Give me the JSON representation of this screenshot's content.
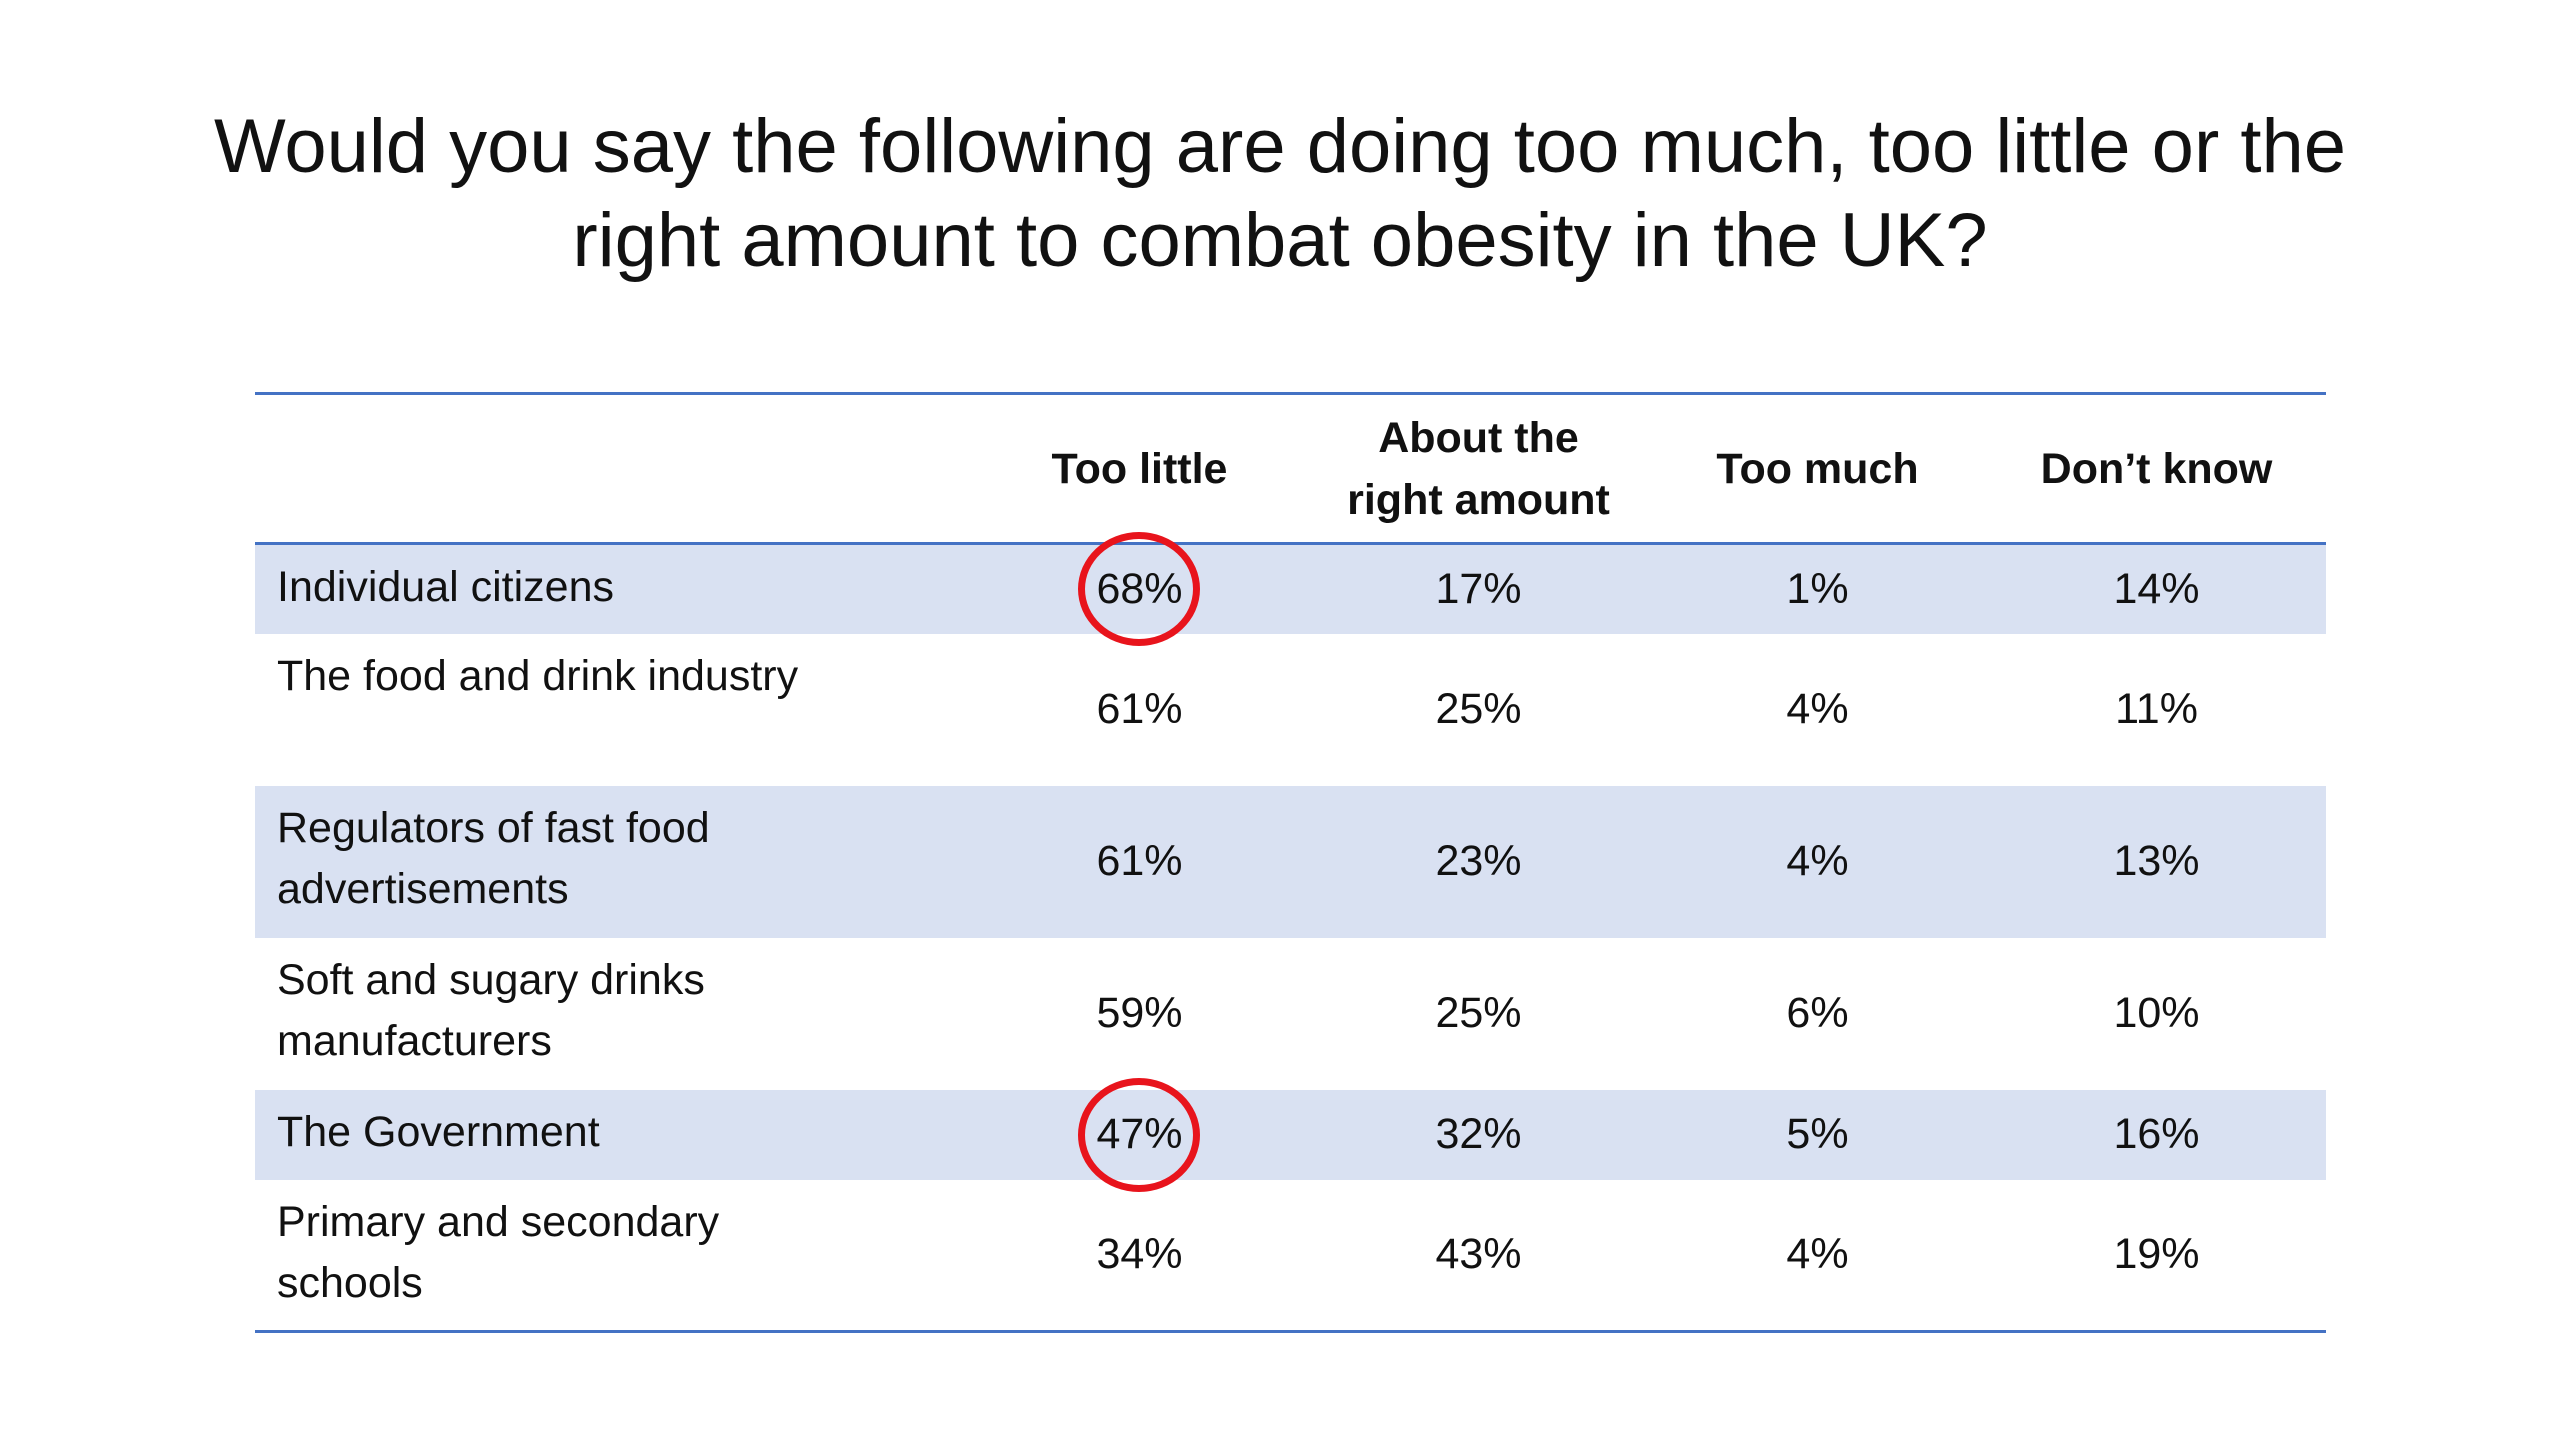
{
  "chart_data": {
    "type": "table",
    "title": "Would you say the following are doing too much, too little or the right amount to combat obesity in the UK?",
    "columns": [
      "",
      "Too little",
      "About the right amount",
      "Too much",
      "Don’t know"
    ],
    "rows": [
      {
        "label": "Individual citizens",
        "values": [
          "68%",
          "17%",
          "1%",
          "14%"
        ],
        "highlight": 0
      },
      {
        "label": "The food and drink industry",
        "values": [
          "61%",
          "25%",
          "4%",
          "11%"
        ]
      },
      {
        "label": "Regulators of fast food advertisements",
        "values": [
          "61%",
          "23%",
          "4%",
          "13%"
        ]
      },
      {
        "label": "Soft and sugary drinks manufacturers",
        "values": [
          "59%",
          "25%",
          "6%",
          "10%"
        ]
      },
      {
        "label": "The Government",
        "values": [
          "47%",
          "32%",
          "5%",
          "16%"
        ],
        "highlight": 0
      },
      {
        "label": "Primary and secondary schools",
        "values": [
          "34%",
          "43%",
          "4%",
          "19%"
        ]
      }
    ],
    "colors": {
      "header_rule": "#4472c4",
      "row_shade": "#d9e1f2",
      "highlight_circle": "#e8141c"
    }
  }
}
